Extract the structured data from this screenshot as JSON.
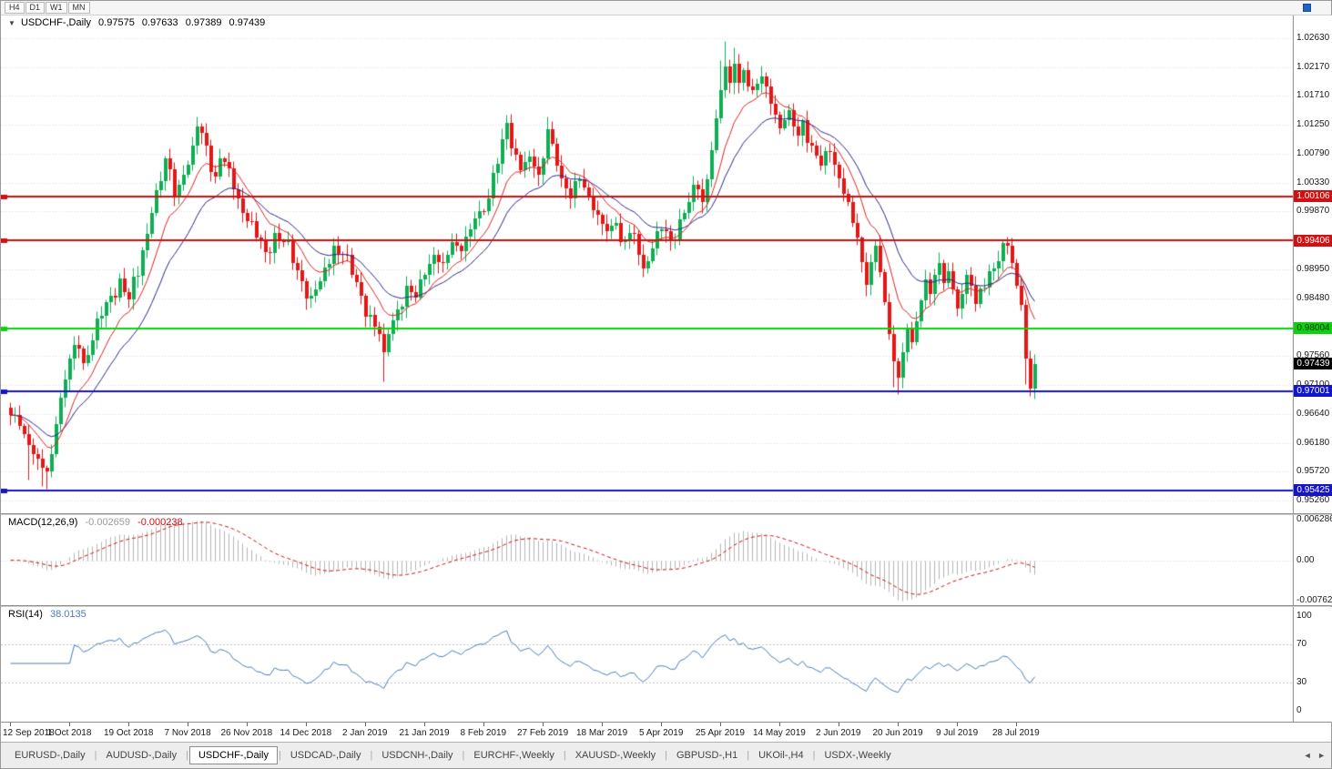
{
  "toolbar": {
    "timeframes": [
      "H4",
      "D1",
      "W1",
      "MN"
    ]
  },
  "tab_arrows": {
    "left": "◄",
    "right": "►"
  },
  "tabs": {
    "items": [
      {
        "label": "EURUSD-,Daily",
        "active": false
      },
      {
        "label": "AUDUSD-,Daily",
        "active": false
      },
      {
        "label": "USDCHF-,Daily",
        "active": true
      },
      {
        "label": "USDCAD-,Daily",
        "active": false
      },
      {
        "label": "USDCNH-,Daily",
        "active": false
      },
      {
        "label": "EURCHF-,Weekly",
        "active": false
      },
      {
        "label": "XAUUSD-,Weekly",
        "active": false
      },
      {
        "label": "GBPUSD-,H1",
        "active": false
      },
      {
        "label": "UKOil-,H4",
        "active": false
      },
      {
        "label": "USDX-,Weekly",
        "active": false
      }
    ]
  },
  "chart_data": {
    "type": "candlestick",
    "symbol": "USDCHF",
    "timeframe": "Daily",
    "title": {
      "collapse_glyph": "▼",
      "symbol": "USDCHF-,Daily",
      "open": "0.97575",
      "high": "0.97633",
      "low": "0.97389",
      "close": "0.97439"
    },
    "candle_count": 226,
    "colors": {
      "candle_up": "#0fae54",
      "candle_down": "#e51616",
      "ma_fast": "#dd2222",
      "ma_slow": "#26268e",
      "macd_hist": "#b4b4b4",
      "macd_signal": "#cc1111",
      "rsi_line": "#4a7ab5",
      "grid": "#dcdcdc"
    },
    "price_axis": {
      "top_price": 1.02993,
      "bottom_price": 0.95056,
      "ticks": [
        "1.02630",
        "1.02170",
        "1.01710",
        "1.01250",
        "1.00790",
        "1.00330",
        "0.99870",
        "0.98950",
        "0.98480",
        "0.97560",
        "0.97100",
        "0.96640",
        "0.96180",
        "0.95720",
        "0.95260"
      ]
    },
    "hlines": [
      {
        "value": 1.00106,
        "label": "1.00106",
        "color": "#d11111",
        "text_color": "#ffffff"
      },
      {
        "value": 0.99406,
        "label": "0.99406",
        "color": "#d11111",
        "text_color": "#ffffff"
      },
      {
        "value": 0.98004,
        "label": "0.98004",
        "color": "#0bd20b",
        "text_color": "#003300"
      },
      {
        "value": 0.97001,
        "label": "0.97001",
        "color": "#1414cc",
        "text_color": "#ffffff"
      },
      {
        "value": 0.95425,
        "label": "0.95425",
        "color": "#1414cc",
        "text_color": "#ffffff"
      }
    ],
    "current_price": {
      "value": 0.97439,
      "label": "0.97439",
      "bg": "#000000",
      "text_color": "#ffffff"
    },
    "ma": {
      "fast_period": 10,
      "slow_period": 20
    },
    "macd": {
      "label": "MACD(12,26,9)",
      "params": [
        12,
        26,
        9
      ],
      "value_main": "-0.002659",
      "value_signal": "-0.000238",
      "axis_top": "0.006286",
      "axis_zero": "0.00",
      "axis_bottom": "-0.00762"
    },
    "rsi": {
      "label": "RSI(14)",
      "period": 14,
      "value": "38.0135",
      "axis": [
        "100",
        "70",
        "30",
        "0"
      ],
      "levels": [
        70,
        30
      ]
    },
    "x_labels": [
      [
        0,
        "12 Sep 2018"
      ],
      [
        13,
        "1 Oct 2018"
      ],
      [
        26,
        "19 Oct 2018"
      ],
      [
        39,
        "7 Nov 2018"
      ],
      [
        52,
        "26 Nov 2018"
      ],
      [
        65,
        "14 Dec 2018"
      ],
      [
        78,
        "2 Jan 2019"
      ],
      [
        91,
        "21 Jan 2019"
      ],
      [
        104,
        "8 Feb 2019"
      ],
      [
        117,
        "27 Feb 2019"
      ],
      [
        130,
        "18 Mar 2019"
      ],
      [
        143,
        "5 Apr 2019"
      ],
      [
        156,
        "25 Apr 2019"
      ],
      [
        169,
        "14 May 2019"
      ],
      [
        182,
        "2 Jun 2019"
      ],
      [
        195,
        "20 Jun 2019"
      ],
      [
        208,
        "9 Jul 2019"
      ],
      [
        221,
        "28 Jul 2019"
      ]
    ],
    "close_anchors": [
      [
        0,
        0.9662
      ],
      [
        2,
        0.9645
      ],
      [
        4,
        0.9615
      ],
      [
        6,
        0.9592
      ],
      [
        8,
        0.9572
      ],
      [
        9,
        0.96
      ],
      [
        10,
        0.9648
      ],
      [
        11,
        0.969
      ],
      [
        13,
        0.9752
      ],
      [
        15,
        0.9768
      ],
      [
        16,
        0.9745
      ],
      [
        18,
        0.9782
      ],
      [
        20,
        0.982
      ],
      [
        22,
        0.9852
      ],
      [
        24,
        0.988
      ],
      [
        26,
        0.9846
      ],
      [
        28,
        0.9885
      ],
      [
        29,
        0.9925
      ],
      [
        31,
        0.9985
      ],
      [
        33,
        1.0035
      ],
      [
        34,
        1.0072
      ],
      [
        36,
        1.0012
      ],
      [
        38,
        1.0045
      ],
      [
        40,
        1.0092
      ],
      [
        41,
        1.0122
      ],
      [
        43,
        1.0092
      ],
      [
        45,
        1.0042
      ],
      [
        46,
        1.0072
      ],
      [
        48,
        1.0055
      ],
      [
        50,
        1.0008
      ],
      [
        52,
        0.9972
      ],
      [
        54,
        0.9945
      ],
      [
        56,
        0.9922
      ],
      [
        58,
        0.9952
      ],
      [
        60,
        0.9938
      ],
      [
        62,
        0.9905
      ],
      [
        64,
        0.9876
      ],
      [
        66,
        0.9852
      ],
      [
        68,
        0.9876
      ],
      [
        69,
        0.9898
      ],
      [
        71,
        0.9932
      ],
      [
        73,
        0.9918
      ],
      [
        75,
        0.9886
      ],
      [
        77,
        0.9852
      ],
      [
        79,
        0.9822
      ],
      [
        81,
        0.9792
      ],
      [
        82,
        0.9762
      ],
      [
        83,
        0.9792
      ],
      [
        85,
        0.983
      ],
      [
        87,
        0.9868
      ],
      [
        89,
        0.985
      ],
      [
        91,
        0.9886
      ],
      [
        93,
        0.9918
      ],
      [
        95,
        0.9904
      ],
      [
        97,
        0.9938
      ],
      [
        99,
        0.9924
      ],
      [
        101,
        0.9958
      ],
      [
        103,
        0.9988
      ],
      [
        105,
        1.0008
      ],
      [
        106,
        1.0048
      ],
      [
        108,
        1.0102
      ],
      [
        109,
        1.0128
      ],
      [
        110,
        1.0088
      ],
      [
        112,
        1.0052
      ],
      [
        114,
        1.0075
      ],
      [
        116,
        1.0045
      ],
      [
        117,
        1.0072
      ],
      [
        118,
        1.0118
      ],
      [
        119,
        1.0095
      ],
      [
        120,
        1.006
      ],
      [
        121,
        1.004
      ],
      [
        123,
        1.0008
      ],
      [
        125,
        1.0038
      ],
      [
        127,
        1.0012
      ],
      [
        129,
        0.9982
      ],
      [
        131,
        0.9955
      ],
      [
        133,
        0.9968
      ],
      [
        134,
        0.9938
      ],
      [
        136,
        0.9952
      ],
      [
        138,
        0.9918
      ],
      [
        139,
        0.9896
      ],
      [
        141,
        0.9928
      ],
      [
        143,
        0.9958
      ],
      [
        145,
        0.9942
      ],
      [
        147,
        0.9975
      ],
      [
        149,
        1.0002
      ],
      [
        151,
        1.0022
      ],
      [
        152,
        1.0002
      ],
      [
        153,
        1.0038
      ],
      [
        154,
        1.0085
      ],
      [
        155,
        1.0135
      ],
      [
        156,
        1.018
      ],
      [
        157,
        1.0218
      ],
      [
        158,
        1.0192
      ],
      [
        159,
        1.0222
      ],
      [
        160,
        1.0192
      ],
      [
        161,
        1.0212
      ],
      [
        163,
        1.018
      ],
      [
        165,
        1.0202
      ],
      [
        167,
        1.0158
      ],
      [
        169,
        1.012
      ],
      [
        171,
        1.0148
      ],
      [
        173,
        1.0108
      ],
      [
        174,
        1.0132
      ],
      [
        176,
        1.0092
      ],
      [
        178,
        1.006
      ],
      [
        180,
        1.0082
      ],
      [
        182,
        1.004
      ],
      [
        184,
        1.0002
      ],
      [
        185,
        0.9968
      ],
      [
        186,
        0.9945
      ],
      [
        187,
        0.9906
      ],
      [
        188,
        0.987
      ],
      [
        189,
        0.9906
      ],
      [
        190,
        0.9932
      ],
      [
        191,
        0.989
      ],
      [
        192,
        0.9842
      ],
      [
        193,
        0.9792
      ],
      [
        194,
        0.9748
      ],
      [
        195,
        0.9722
      ],
      [
        196,
        0.9762
      ],
      [
        197,
        0.98
      ],
      [
        198,
        0.9778
      ],
      [
        199,
        0.9812
      ],
      [
        200,
        0.9845
      ],
      [
        201,
        0.9878
      ],
      [
        202,
        0.9855
      ],
      [
        203,
        0.9886
      ],
      [
        204,
        0.9905
      ],
      [
        205,
        0.9872
      ],
      [
        206,
        0.9892
      ],
      [
        207,
        0.9862
      ],
      [
        208,
        0.9832
      ],
      [
        209,
        0.9856
      ],
      [
        210,
        0.9886
      ],
      [
        211,
        0.9868
      ],
      [
        212,
        0.984
      ],
      [
        213,
        0.9864
      ],
      [
        215,
        0.9892
      ],
      [
        217,
        0.9908
      ],
      [
        219,
        0.9932
      ],
      [
        220,
        0.9904
      ],
      [
        221,
        0.9868
      ],
      [
        222,
        0.9838
      ],
      [
        223,
        0.9752
      ],
      [
        224,
        0.9705
      ],
      [
        225,
        0.97439
      ]
    ],
    "wick_overrides": {
      "4": [
        null,
        0.956
      ],
      "7": [
        null,
        0.9549
      ],
      "8": [
        null,
        0.9545
      ],
      "41": [
        1.0138,
        null
      ],
      "82": [
        null,
        0.9716
      ],
      "109": [
        1.0141,
        null
      ],
      "118": [
        1.0138,
        null
      ],
      "156": [
        1.0228,
        null
      ],
      "157": [
        1.0258,
        null
      ],
      "159": [
        1.0248,
        null
      ],
      "194": [
        null,
        0.9707
      ],
      "195": [
        null,
        0.9695
      ],
      "219": [
        0.9947,
        null
      ],
      "223": [
        null,
        0.9712
      ],
      "224": [
        null,
        0.9693
      ]
    }
  }
}
